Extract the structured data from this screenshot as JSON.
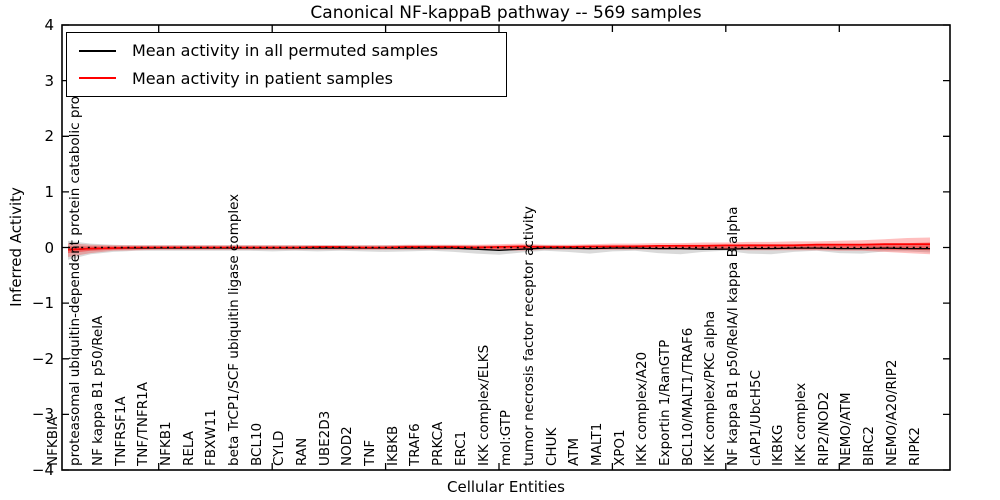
{
  "title": "Canonical NF-kappaB pathway -- 569 samples",
  "axes": {
    "ylabel": "Inferred Activity",
    "xlabel": "Cellular Entities",
    "yticks": [
      "4",
      "3",
      "2",
      "1",
      "0",
      "−1",
      "−2",
      "−3",
      "−4"
    ]
  },
  "legend": {
    "items": [
      {
        "label": "Mean activity in all permuted samples",
        "color": "#000000"
      },
      {
        "label": "Mean activity in patient samples",
        "color": "#ff0000"
      }
    ]
  },
  "colors": {
    "permuted_line": "#000000",
    "patient_line": "#ff0000",
    "permuted_band": "rgba(0,0,0,0.15)",
    "patient_band_outer": "rgba(255,0,0,0.25)",
    "patient_band_inner": "rgba(255,0,0,0.40)",
    "zero_line": "#000000",
    "frame": "#000000"
  },
  "chart_data": {
    "type": "line",
    "title": "Canonical NF-kappaB pathway -- 569 samples",
    "xlabel": "Cellular Entities",
    "ylabel": "Inferred Activity",
    "ylim": [
      -4,
      4
    ],
    "grid": false,
    "legend_position": "upper left",
    "zero_reference_line": true,
    "categories": [
      "NFKBIA",
      "proteasomal ubiquitin-dependent protein catabolic process",
      "NF kappa B1 p50/RelA",
      "TNFRSF1A",
      "TNF/TNFR1A",
      "NFKB1",
      "RELA",
      "FBXW11",
      "beta TrCP1/SCF ubiquitin ligase complex",
      "BCL10",
      "CYLD",
      "RAN",
      "UBE2D3",
      "NOD2",
      "TNF",
      "IKBKB",
      "TRAF6",
      "PRKCA",
      "ERC1",
      "IKK complex/ELKS",
      "mol:GTP",
      "tumor necrosis factor receptor activity",
      "CHUK",
      "ATM",
      "MALT1",
      "XPO1",
      "IKK complex/A20",
      "Exportin 1/RanGTP",
      "BCL10/MALT1/TRAF6",
      "IKK complex/PKC alpha",
      "NF kappa B1 p50/RelA/I kappa B alpha",
      "cIAP1/UbcH5C",
      "IKBKG",
      "IKK complex",
      "RIP2/NOD2",
      "NEMO/ATM",
      "BIRC2",
      "NEMO/A20/RIP2",
      "RIPK2"
    ],
    "x_major_tick_indices": [
      4,
      9,
      14,
      19,
      24,
      29,
      34
    ],
    "series": [
      {
        "name": "Mean activity in all permuted samples",
        "color": "#000000",
        "values": [
          -0.04,
          -0.02,
          -0.01,
          -0.01,
          -0.01,
          -0.01,
          -0.01,
          -0.01,
          -0.01,
          -0.01,
          -0.01,
          -0.01,
          -0.01,
          -0.01,
          -0.01,
          -0.01,
          -0.01,
          -0.01,
          -0.03,
          -0.05,
          -0.03,
          -0.01,
          -0.01,
          -0.02,
          -0.01,
          -0.01,
          -0.02,
          -0.02,
          -0.03,
          -0.03,
          -0.02,
          -0.02,
          -0.01,
          -0.01,
          -0.02,
          -0.02,
          -0.01,
          -0.02,
          -0.02
        ],
        "band_top": [
          0.12,
          0.07,
          0.05,
          0.04,
          0.04,
          0.04,
          0.04,
          0.04,
          0.04,
          0.04,
          0.04,
          0.04,
          0.04,
          0.04,
          0.04,
          0.04,
          0.04,
          0.04,
          0.03,
          0.03,
          0.03,
          0.04,
          0.03,
          0.03,
          0.03,
          0.04,
          0.03,
          0.03,
          0.03,
          0.03,
          0.03,
          0.03,
          0.04,
          0.04,
          0.03,
          0.03,
          0.04,
          0.04,
          0.04
        ],
        "band_bottom": [
          -0.22,
          -0.12,
          -0.08,
          -0.06,
          -0.06,
          -0.06,
          -0.06,
          -0.06,
          -0.06,
          -0.07,
          -0.06,
          -0.07,
          -0.06,
          -0.07,
          -0.08,
          -0.07,
          -0.06,
          -0.08,
          -0.11,
          -0.13,
          -0.09,
          -0.06,
          -0.08,
          -0.11,
          -0.07,
          -0.06,
          -0.1,
          -0.12,
          -0.08,
          -0.06,
          -0.11,
          -0.12,
          -0.08,
          -0.06,
          -0.1,
          -0.11,
          -0.07,
          -0.07,
          -0.09
        ]
      },
      {
        "name": "Mean activity in patient samples",
        "color": "#ff0000",
        "values": [
          -0.04,
          -0.02,
          -0.01,
          0.0,
          0.0,
          0.0,
          0.0,
          0.0,
          0.0,
          0.0,
          0.0,
          0.01,
          0.01,
          0.0,
          0.0,
          0.01,
          0.01,
          0.01,
          0.0,
          0.01,
          0.02,
          0.01,
          0.01,
          0.02,
          0.02,
          0.02,
          0.03,
          0.03,
          0.03,
          0.04,
          0.04,
          0.04,
          0.04,
          0.05,
          0.05,
          0.05,
          0.06,
          0.06,
          0.06
        ],
        "band_outer_top": [
          0.08,
          0.05,
          0.04,
          0.04,
          0.04,
          0.04,
          0.04,
          0.04,
          0.04,
          0.04,
          0.04,
          0.04,
          0.04,
          0.04,
          0.04,
          0.05,
          0.05,
          0.05,
          0.05,
          0.06,
          0.07,
          0.05,
          0.05,
          0.06,
          0.07,
          0.07,
          0.08,
          0.08,
          0.09,
          0.09,
          0.1,
          0.1,
          0.11,
          0.11,
          0.12,
          0.13,
          0.15,
          0.17,
          0.18
        ],
        "band_outer_bottom": [
          -0.17,
          -0.1,
          -0.06,
          -0.05,
          -0.04,
          -0.04,
          -0.04,
          -0.04,
          -0.04,
          -0.04,
          -0.04,
          -0.04,
          -0.04,
          -0.04,
          -0.04,
          -0.04,
          -0.04,
          -0.04,
          -0.04,
          -0.05,
          -0.06,
          -0.04,
          -0.04,
          -0.04,
          -0.04,
          -0.04,
          -0.04,
          -0.04,
          -0.04,
          -0.04,
          -0.05,
          -0.05,
          -0.05,
          -0.05,
          -0.06,
          -0.06,
          -0.08,
          -0.1,
          -0.12
        ],
        "band_inner_top": [
          0.02,
          0.02,
          0.02,
          0.02,
          0.02,
          0.02,
          0.02,
          0.02,
          0.02,
          0.02,
          0.02,
          0.02,
          0.02,
          0.02,
          0.02,
          0.03,
          0.03,
          0.03,
          0.03,
          0.03,
          0.04,
          0.03,
          0.03,
          0.03,
          0.04,
          0.04,
          0.04,
          0.05,
          0.05,
          0.05,
          0.06,
          0.06,
          0.06,
          0.07,
          0.07,
          0.07,
          0.08,
          0.08,
          0.09
        ],
        "band_inner_bottom": [
          -0.1,
          -0.06,
          -0.04,
          -0.03,
          -0.02,
          -0.02,
          -0.02,
          -0.02,
          -0.02,
          -0.02,
          -0.02,
          -0.02,
          -0.02,
          -0.02,
          -0.02,
          -0.02,
          -0.02,
          -0.02,
          -0.02,
          -0.03,
          -0.04,
          -0.02,
          -0.02,
          -0.02,
          -0.02,
          -0.02,
          -0.02,
          -0.02,
          -0.02,
          -0.02,
          -0.03,
          -0.03,
          -0.03,
          -0.03,
          -0.03,
          -0.03,
          -0.04,
          -0.04,
          -0.05
        ]
      }
    ]
  }
}
